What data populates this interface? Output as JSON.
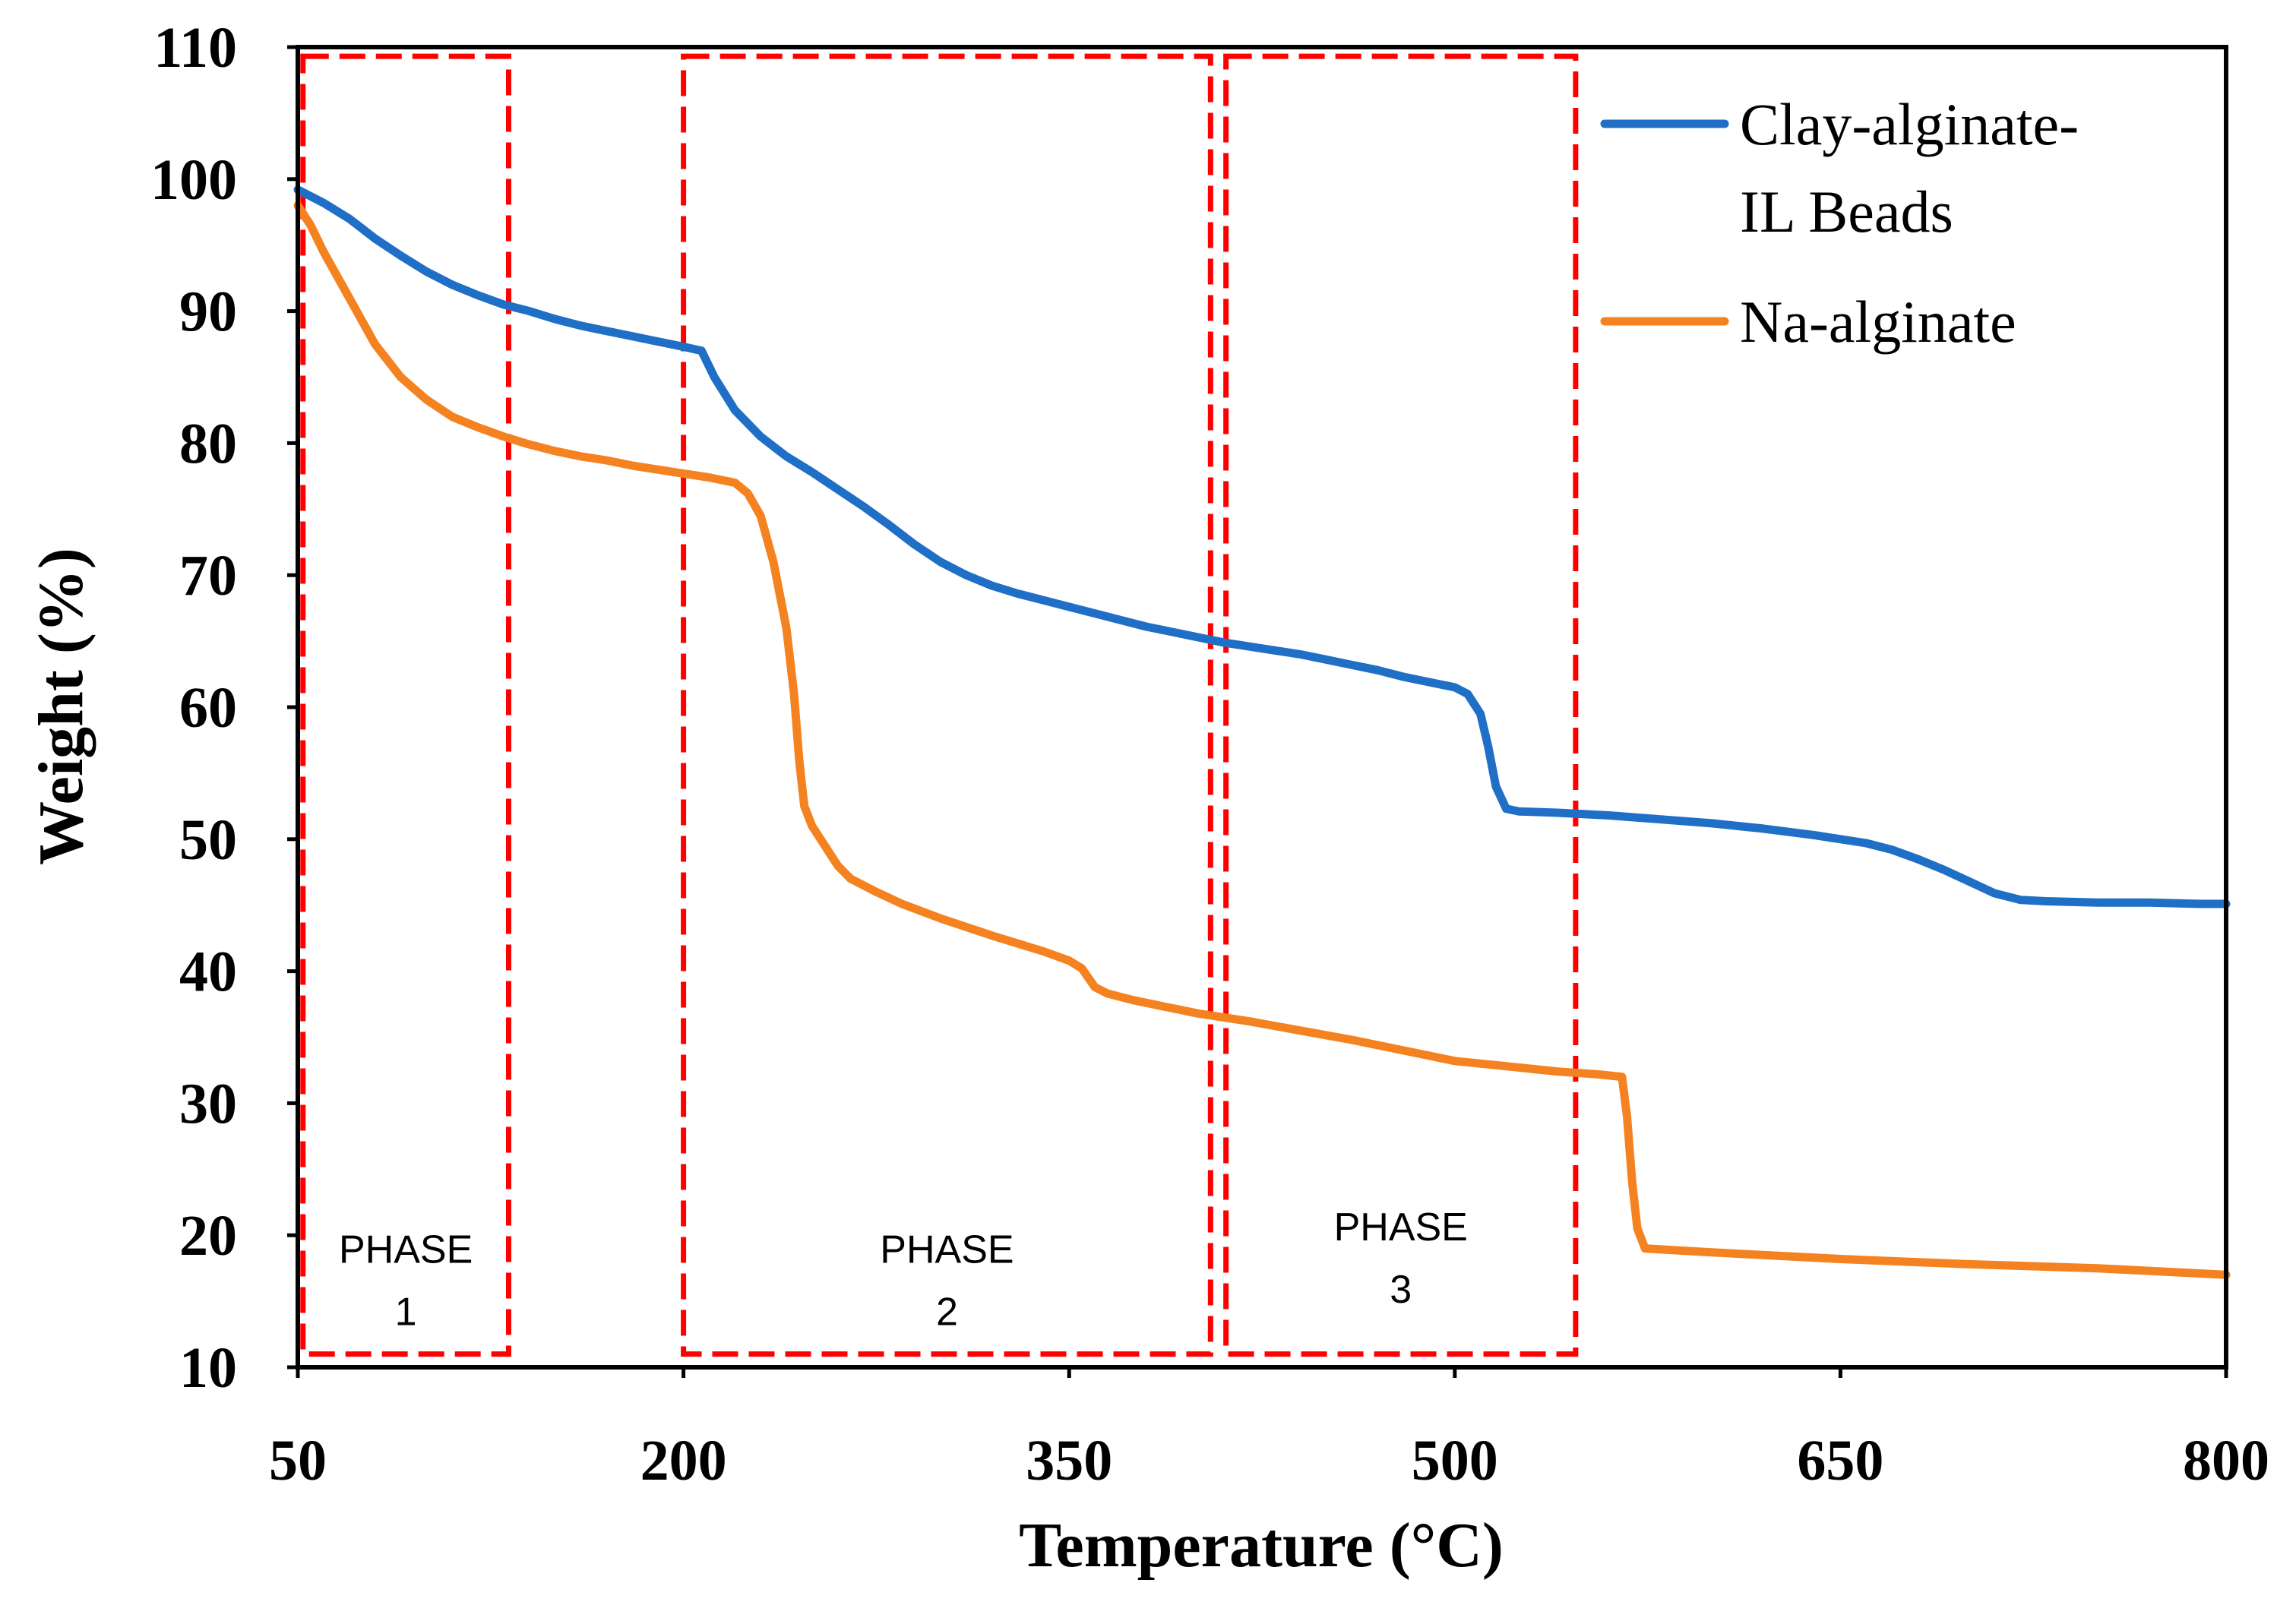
{
  "chart_data": {
    "type": "line",
    "title": "",
    "xlabel": "Temperature (°C)",
    "ylabel": "Weight (%)",
    "xlim": [
      50,
      800
    ],
    "ylim": [
      10,
      110
    ],
    "x_ticks": [
      50,
      200,
      350,
      500,
      650,
      800
    ],
    "y_ticks": [
      10,
      20,
      30,
      40,
      50,
      60,
      70,
      80,
      90,
      100,
      110
    ],
    "grid": false,
    "legend": {
      "placement": "top-right",
      "entries": [
        {
          "lines": [
            "Clay-alginate-",
            "IL Beads"
          ],
          "color": "#1F6FC6"
        },
        {
          "lines": [
            "Na-alginate"
          ],
          "color": "#F58220"
        }
      ]
    },
    "series": [
      {
        "name": "Clay-alginate-IL Beads",
        "color": "#1F6FC6",
        "points": [
          [
            50,
            99.2
          ],
          [
            60,
            98.2
          ],
          [
            70,
            97.0
          ],
          [
            80,
            95.5
          ],
          [
            90,
            94.2
          ],
          [
            100,
            93.0
          ],
          [
            110,
            92.0
          ],
          [
            120,
            91.2
          ],
          [
            130,
            90.5
          ],
          [
            140,
            90.0
          ],
          [
            150,
            89.4
          ],
          [
            160,
            88.9
          ],
          [
            170,
            88.5
          ],
          [
            180,
            88.1
          ],
          [
            190,
            87.7
          ],
          [
            200,
            87.3
          ],
          [
            207,
            87.0
          ],
          [
            212,
            85.0
          ],
          [
            220,
            82.5
          ],
          [
            230,
            80.5
          ],
          [
            240,
            79.0
          ],
          [
            250,
            77.8
          ],
          [
            260,
            76.5
          ],
          [
            270,
            75.2
          ],
          [
            280,
            73.8
          ],
          [
            290,
            72.3
          ],
          [
            300,
            71.0
          ],
          [
            310,
            70.0
          ],
          [
            320,
            69.2
          ],
          [
            330,
            68.6
          ],
          [
            340,
            68.1
          ],
          [
            350,
            67.6
          ],
          [
            360,
            67.1
          ],
          [
            370,
            66.6
          ],
          [
            380,
            66.1
          ],
          [
            390,
            65.7
          ],
          [
            400,
            65.3
          ],
          [
            410,
            64.9
          ],
          [
            420,
            64.6
          ],
          [
            430,
            64.3
          ],
          [
            440,
            64.0
          ],
          [
            450,
            63.6
          ],
          [
            460,
            63.2
          ],
          [
            470,
            62.8
          ],
          [
            480,
            62.3
          ],
          [
            490,
            61.9
          ],
          [
            500,
            61.5
          ],
          [
            505,
            61.0
          ],
          [
            510,
            59.5
          ],
          [
            513,
            57.0
          ],
          [
            516,
            54.0
          ],
          [
            520,
            52.3
          ],
          [
            525,
            52.1
          ],
          [
            540,
            52.0
          ],
          [
            560,
            51.8
          ],
          [
            580,
            51.5
          ],
          [
            600,
            51.2
          ],
          [
            620,
            50.8
          ],
          [
            640,
            50.3
          ],
          [
            660,
            49.7
          ],
          [
            670,
            49.2
          ],
          [
            680,
            48.5
          ],
          [
            690,
            47.7
          ],
          [
            700,
            46.8
          ],
          [
            710,
            45.9
          ],
          [
            720,
            45.4
          ],
          [
            730,
            45.3
          ],
          [
            750,
            45.2
          ],
          [
            770,
            45.2
          ],
          [
            790,
            45.1
          ],
          [
            800,
            45.1
          ]
        ]
      },
      {
        "name": "Na-alginate",
        "color": "#F58220",
        "points": [
          [
            50,
            98.0
          ],
          [
            55,
            96.5
          ],
          [
            60,
            94.5
          ],
          [
            70,
            91.0
          ],
          [
            80,
            87.5
          ],
          [
            90,
            85.0
          ],
          [
            100,
            83.3
          ],
          [
            110,
            82.0
          ],
          [
            120,
            81.2
          ],
          [
            130,
            80.5
          ],
          [
            140,
            79.9
          ],
          [
            150,
            79.4
          ],
          [
            160,
            79.0
          ],
          [
            170,
            78.7
          ],
          [
            180,
            78.3
          ],
          [
            190,
            78.0
          ],
          [
            200,
            77.7
          ],
          [
            210,
            77.4
          ],
          [
            220,
            77.0
          ],
          [
            225,
            76.2
          ],
          [
            230,
            74.5
          ],
          [
            235,
            71.0
          ],
          [
            240,
            66.0
          ],
          [
            243,
            61.0
          ],
          [
            245,
            56.0
          ],
          [
            247,
            52.5
          ],
          [
            250,
            51.0
          ],
          [
            255,
            49.5
          ],
          [
            260,
            48.0
          ],
          [
            265,
            47.0
          ],
          [
            275,
            46.0
          ],
          [
            285,
            45.1
          ],
          [
            300,
            44.0
          ],
          [
            320,
            42.7
          ],
          [
            340,
            41.5
          ],
          [
            350,
            40.8
          ],
          [
            355,
            40.2
          ],
          [
            360,
            38.8
          ],
          [
            365,
            38.3
          ],
          [
            375,
            37.8
          ],
          [
            390,
            37.2
          ],
          [
            400,
            36.8
          ],
          [
            420,
            36.2
          ],
          [
            440,
            35.5
          ],
          [
            460,
            34.8
          ],
          [
            480,
            34.0
          ],
          [
            500,
            33.2
          ],
          [
            520,
            32.8
          ],
          [
            540,
            32.4
          ],
          [
            555,
            32.2
          ],
          [
            565,
            32.0
          ],
          [
            567,
            29.0
          ],
          [
            569,
            24.0
          ],
          [
            571,
            20.5
          ],
          [
            574,
            19.0
          ],
          [
            600,
            18.7
          ],
          [
            650,
            18.2
          ],
          [
            700,
            17.8
          ],
          [
            750,
            17.5
          ],
          [
            800,
            17.0
          ]
        ]
      }
    ],
    "phase_regions": [
      {
        "x_start": 52,
        "x_end": 132,
        "lines": [
          "PHASE",
          "1"
        ]
      },
      {
        "x_start": 200,
        "x_end": 405,
        "lines": [
          "PHASE",
          "2"
        ]
      },
      {
        "x_start": 411,
        "x_end": 547,
        "lines": [
          "PHASE",
          "3"
        ]
      }
    ],
    "phase_box_color": "#FF0000"
  }
}
